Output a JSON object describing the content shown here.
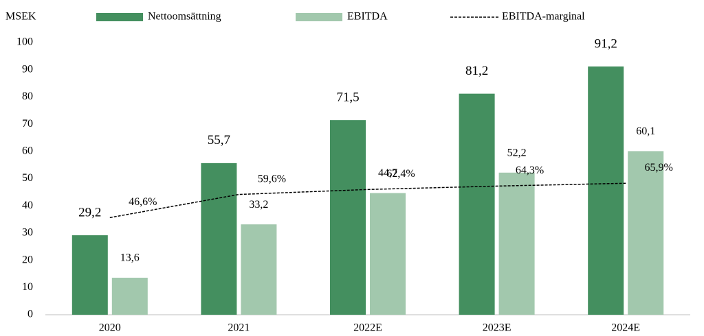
{
  "chart_data": {
    "type": "bar",
    "y_label": "MSEK",
    "categories": [
      "2020",
      "2021",
      "2022E",
      "2023E",
      "2024E"
    ],
    "series": [
      {
        "name": "Nettoomsättning",
        "type": "bar",
        "color": "#448f5f",
        "values": [
          29.2,
          55.7,
          71.5,
          81.2,
          91.2
        ],
        "value_labels": [
          "29,2",
          "55,7",
          "71,5",
          "81,2",
          "91,2"
        ]
      },
      {
        "name": "EBITDA",
        "type": "bar",
        "color": "#a2c8ad",
        "values": [
          13.6,
          33.2,
          44.7,
          52.2,
          60.1
        ],
        "value_labels": [
          "13,6",
          "33,2",
          "44,7",
          "52,2",
          "60,1"
        ]
      },
      {
        "name": "EBITDA-marginal",
        "type": "line",
        "axis": "y2",
        "color": "#000000",
        "values": [
          46.6,
          59.6,
          62.4,
          64.3,
          65.9
        ],
        "value_labels": [
          "46,6%",
          "59,6%",
          "62,4%",
          "64,3%",
          "65,9%"
        ]
      }
    ],
    "ylim": [
      0,
      100
    ],
    "yticks": [
      0,
      10,
      20,
      30,
      40,
      50,
      60,
      70,
      80,
      90,
      100
    ],
    "y2lim": [
      -8,
      145
    ],
    "grid": false,
    "legend": "top"
  }
}
